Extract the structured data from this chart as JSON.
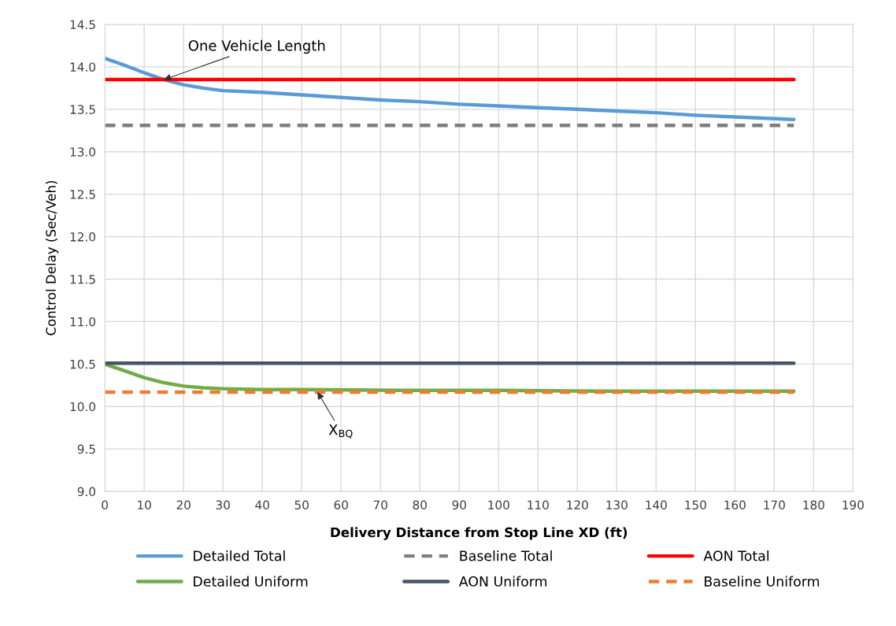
{
  "chart_data": {
    "type": "line",
    "xlabel": "Delivery Distance from Stop Line XD (ft)",
    "ylabel": "Control Delay (Sec/Veh)",
    "xlim": [
      0,
      190
    ],
    "xticks": [
      0,
      10,
      20,
      30,
      40,
      50,
      60,
      70,
      80,
      90,
      100,
      110,
      120,
      130,
      140,
      150,
      160,
      170,
      180,
      190
    ],
    "ylim": [
      9.0,
      14.5
    ],
    "yticks": [
      {
        "value": 9.0,
        "label": "9.0"
      },
      9.5,
      {
        "value": 10.0,
        "label": "10.0"
      },
      10.5,
      {
        "value": 11.0,
        "label": "11.0"
      },
      11.5,
      {
        "value": 12.0,
        "label": "12.0"
      },
      12.5,
      {
        "value": 13.0,
        "label": "13.0"
      },
      13.5,
      {
        "value": 14.0,
        "label": "14.0"
      },
      14.5
    ],
    "grid": true,
    "legend": "bottom",
    "marker": "none",
    "series": [
      {
        "name": "Detailed Total",
        "color": "#5b9bd5",
        "line_style": "solid",
        "x": [
          0,
          5,
          10,
          15,
          20,
          25,
          30,
          40,
          50,
          60,
          70,
          80,
          90,
          100,
          110,
          120,
          130,
          140,
          150,
          160,
          175
        ],
        "values": [
          14.1,
          14.02,
          13.93,
          13.85,
          13.79,
          13.75,
          13.72,
          13.7,
          13.67,
          13.64,
          13.61,
          13.59,
          13.56,
          13.54,
          13.52,
          13.5,
          13.48,
          13.46,
          13.43,
          13.41,
          13.38
        ]
      },
      {
        "name": "Baseline Total",
        "color": "#7f7f7f",
        "line_style": "dashed",
        "x": [
          0,
          175
        ],
        "values": [
          13.31,
          13.31
        ]
      },
      {
        "name": "AON Total",
        "color": "#ff0000",
        "line_style": "solid",
        "x": [
          0,
          175
        ],
        "values": [
          13.85,
          13.85
        ]
      },
      {
        "name": "Detailed Uniform",
        "color": "#70ad47",
        "line_style": "solid",
        "x": [
          0,
          5,
          10,
          15,
          20,
          25,
          30,
          40,
          50,
          75,
          100,
          125,
          150,
          175
        ],
        "values": [
          10.5,
          10.42,
          10.34,
          10.28,
          10.24,
          10.22,
          10.21,
          10.2,
          10.2,
          10.19,
          10.19,
          10.18,
          10.18,
          10.18
        ]
      },
      {
        "name": "AON Uniform",
        "color": "#44546a",
        "line_style": "solid",
        "x": [
          0,
          175
        ],
        "values": [
          10.51,
          10.51
        ]
      },
      {
        "name": "Baseline Uniform",
        "color": "#ed7d31",
        "line_style": "dashed",
        "x": [
          0,
          175
        ],
        "values": [
          10.17,
          10.17
        ]
      }
    ],
    "annotations": [
      {
        "text": "One Vehicle Length",
        "x": 15,
        "y": 13.85
      },
      {
        "text": "X$_{BQ}$",
        "x": 54,
        "y": 10.17
      }
    ]
  }
}
